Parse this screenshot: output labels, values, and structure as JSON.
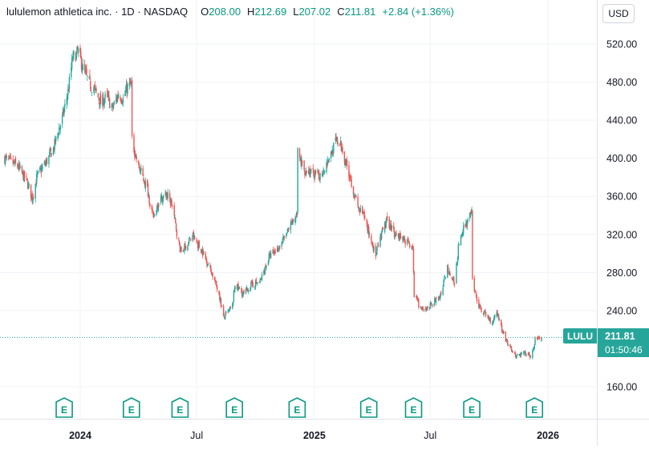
{
  "legend": {
    "symbol_name": "lululemon athletica inc. · 1D · NASDAQ",
    "open_label": "O",
    "open": "208.00",
    "high_label": "H",
    "high": "212.69",
    "low_label": "L",
    "low": "207.02",
    "close_label": "C",
    "close": "211.81",
    "change": "+2.84 (+1.36%)"
  },
  "currency_button": "USD",
  "last_price": {
    "symbol": "LULU",
    "price": "211.81",
    "countdown": "01:50:46"
  },
  "earnings_marker_label": "E",
  "colors": {
    "up": "#26a69a",
    "down": "#ef5350",
    "grid": "#f0f3fa",
    "axis_text": "#131722",
    "earnings": "#089981"
  },
  "chart_data": {
    "type": "candlestick",
    "title": "",
    "xlabel": "",
    "ylabel": "",
    "ylim": [
      137,
      545
    ],
    "x_tick_labels": [
      "2024",
      "Jul",
      "2025",
      "Jul",
      "2026"
    ],
    "y_tick_labels": [
      "520.00",
      "480.00",
      "440.00",
      "400.00",
      "360.00",
      "320.00",
      "280.00",
      "240.00",
      "160.00"
    ],
    "y_tick_values": [
      520,
      480,
      440,
      400,
      360,
      320,
      280,
      240,
      160
    ],
    "last_price_line": 211.81,
    "earnings_events": [
      "2023-12-07",
      "2024-03-21",
      "2024-06-05",
      "2024-08-29",
      "2024-12-05",
      "2025-03-27",
      "2025-06-05",
      "2025-09-04",
      "2025-12-11"
    ],
    "price_path": [
      [
        "2023-09-05",
        400
      ],
      [
        "2023-09-25",
        392
      ],
      [
        "2023-10-10",
        375
      ],
      [
        "2023-10-18",
        358
      ],
      [
        "2023-10-26",
        382
      ],
      [
        "2023-11-08",
        395
      ],
      [
        "2023-11-20",
        410
      ],
      [
        "2023-12-05",
        445
      ],
      [
        "2023-12-13",
        470
      ],
      [
        "2023-12-20",
        505
      ],
      [
        "2023-12-29",
        512
      ],
      [
        "2024-01-05",
        495
      ],
      [
        "2024-01-16",
        478
      ],
      [
        "2024-01-25",
        470
      ],
      [
        "2024-02-02",
        458
      ],
      [
        "2024-02-12",
        465
      ],
      [
        "2024-02-20",
        452
      ],
      [
        "2024-03-01",
        468
      ],
      [
        "2024-03-08",
        462
      ],
      [
        "2024-03-15",
        475
      ],
      [
        "2024-03-21",
        478
      ],
      [
        "2024-03-22",
        418
      ],
      [
        "2024-04-01",
        392
      ],
      [
        "2024-04-15",
        368
      ],
      [
        "2024-04-24",
        337
      ],
      [
        "2024-05-03",
        356
      ],
      [
        "2024-05-15",
        362
      ],
      [
        "2024-05-24",
        350
      ],
      [
        "2024-05-31",
        322
      ],
      [
        "2024-06-06",
        302
      ],
      [
        "2024-06-14",
        308
      ],
      [
        "2024-06-25",
        318
      ],
      [
        "2024-07-10",
        302
      ],
      [
        "2024-07-22",
        285
      ],
      [
        "2024-08-05",
        258
      ],
      [
        "2024-08-12",
        232
      ],
      [
        "2024-08-26",
        245
      ],
      [
        "2024-08-30",
        268
      ],
      [
        "2024-09-12",
        257
      ],
      [
        "2024-09-24",
        267
      ],
      [
        "2024-10-08",
        270
      ],
      [
        "2024-10-22",
        296
      ],
      [
        "2024-11-05",
        305
      ],
      [
        "2024-11-20",
        322
      ],
      [
        "2024-12-05",
        342
      ],
      [
        "2024-12-06",
        405
      ],
      [
        "2024-12-16",
        388
      ],
      [
        "2024-12-26",
        385
      ],
      [
        "2025-01-08",
        380
      ],
      [
        "2025-01-16",
        390
      ],
      [
        "2025-01-27",
        405
      ],
      [
        "2025-02-04",
        418
      ],
      [
        "2025-02-12",
        412
      ],
      [
        "2025-02-24",
        385
      ],
      [
        "2025-03-10",
        348
      ],
      [
        "2025-03-20",
        338
      ],
      [
        "2025-03-28",
        320
      ],
      [
        "2025-04-07",
        298
      ],
      [
        "2025-04-17",
        322
      ],
      [
        "2025-04-25",
        335
      ],
      [
        "2025-05-06",
        322
      ],
      [
        "2025-05-14",
        318
      ],
      [
        "2025-06-04",
        308
      ],
      [
        "2025-06-06",
        255
      ],
      [
        "2025-06-20",
        238
      ],
      [
        "2025-07-03",
        247
      ],
      [
        "2025-07-17",
        255
      ],
      [
        "2025-07-28",
        285
      ],
      [
        "2025-08-08",
        268
      ],
      [
        "2025-08-14",
        305
      ],
      [
        "2025-08-22",
        327
      ],
      [
        "2025-09-04",
        342
      ],
      [
        "2025-09-05",
        272
      ],
      [
        "2025-09-15",
        244
      ],
      [
        "2025-10-06",
        228
      ],
      [
        "2025-10-13",
        240
      ],
      [
        "2025-10-22",
        218
      ],
      [
        "2025-11-03",
        200
      ],
      [
        "2025-11-12",
        192
      ],
      [
        "2025-11-25",
        195
      ],
      [
        "2025-12-05",
        192
      ],
      [
        "2025-12-10",
        198
      ],
      [
        "2025-12-12",
        213
      ],
      [
        "2025-12-22",
        208
      ]
    ]
  }
}
